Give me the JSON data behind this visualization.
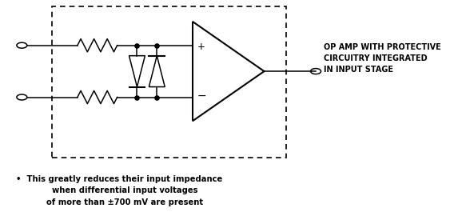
{
  "bg_color": "#ffffff",
  "line_color": "#000000",
  "label_text": "OP AMP WITH PROTECTIVE\nCIRCUITRY INTEGRATED\nIN INPUT STAGE",
  "label_fontsize": 7.0,
  "bullet_text": "•  This greatly reduces their input impedance\n    when differential input voltages\n    of more than ±700 mV are present",
  "bullet_fontsize": 7.2
}
